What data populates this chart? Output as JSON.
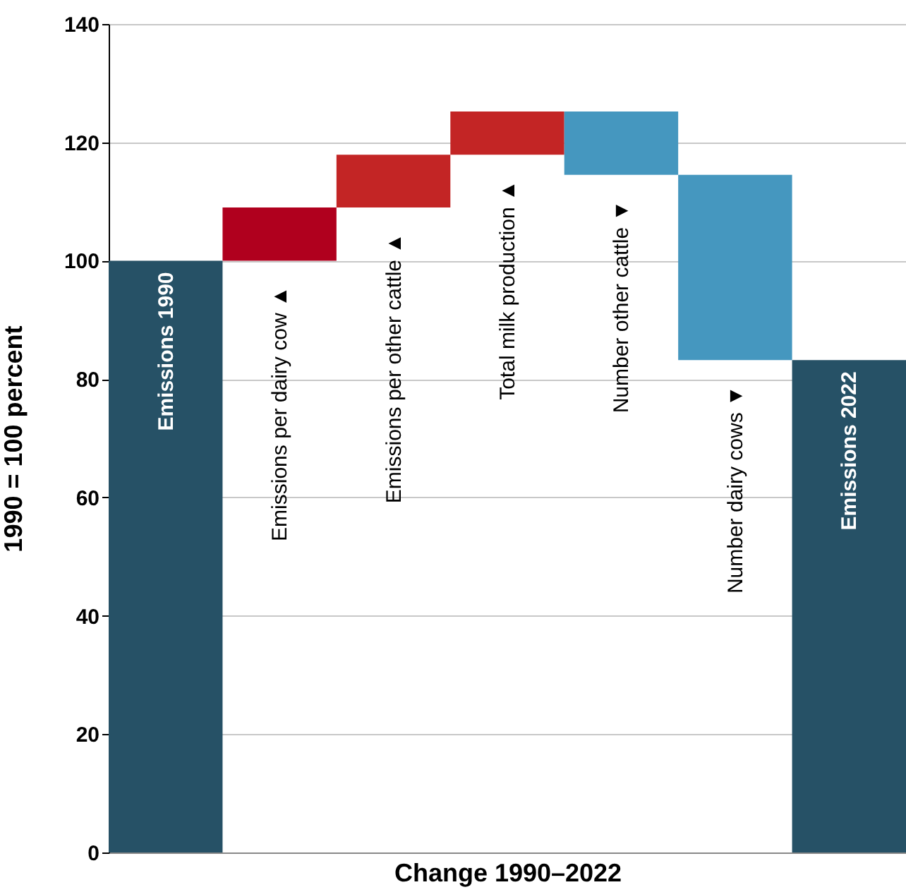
{
  "chart_data": {
    "type": "bar",
    "xlabel": "Change 1990–2022",
    "ylabel": "1990 = 100 percent",
    "categories": [
      "Emissions 1990",
      "Emissions per dairy cow ▲",
      "Emissions per other cattle ▲",
      "Total milk production ▲",
      "Number other cattle ▼",
      "Number dairy cows ▼",
      "Emissions 2022"
    ],
    "base": [
      0,
      100,
      109,
      117.9,
      125.2,
      114.5,
      0
    ],
    "values": [
      100,
      9,
      8.9,
      7.3,
      -10.7,
      -31.3,
      83.2
    ],
    "colors": [
      "#265166",
      "#b0001e",
      "#c32525",
      "#c32525",
      "#4597bf",
      "#4597bf",
      "#265166"
    ],
    "ylim": [
      0,
      140
    ],
    "yticks": [
      0,
      20,
      40,
      60,
      80,
      100,
      120,
      140
    ],
    "grid": "y",
    "tick_labels": "y"
  }
}
